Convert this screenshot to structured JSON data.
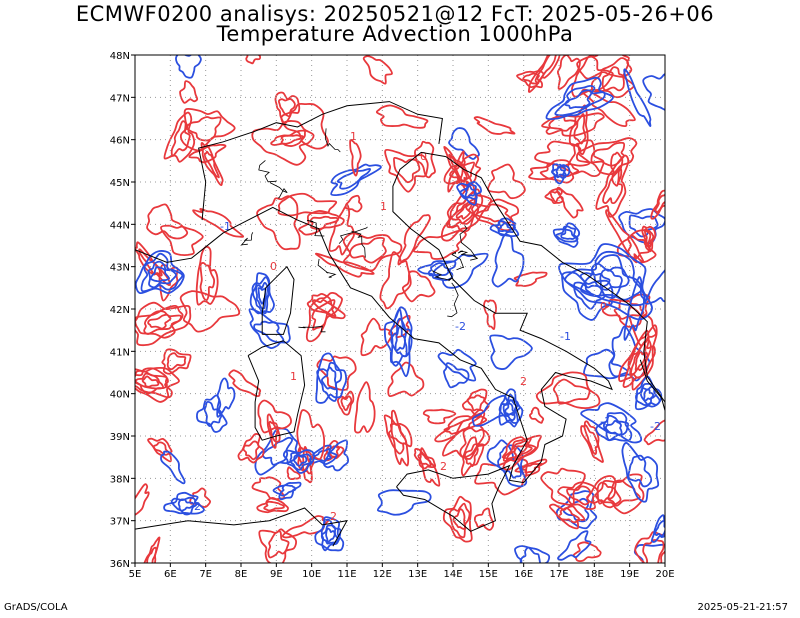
{
  "header": {
    "title_line1": "ECMWF0200 analisys: 20250521@12 FcT: 2025-05-26+06",
    "title_line2": "Temperature Advection 1000hPa"
  },
  "footer": {
    "left": "GrADS/COLA",
    "right": "2025-05-21-21:57"
  },
  "map": {
    "lon_range": [
      5,
      20
    ],
    "lat_range": [
      36,
      48
    ],
    "lon_labels": [
      "5E",
      "6E",
      "7E",
      "8E",
      "9E",
      "10E",
      "11E",
      "12E",
      "13E",
      "14E",
      "15E",
      "16E",
      "17E",
      "18E",
      "19E",
      "20E"
    ],
    "lat_labels": [
      "36N",
      "37N",
      "38N",
      "39N",
      "40N",
      "41N",
      "42N",
      "43N",
      "44N",
      "45N",
      "46N",
      "47N",
      "48N"
    ],
    "grid": "dotted",
    "colors": {
      "warm_advection": "#e8383c",
      "cold_advection": "#2b4fe0",
      "coastline": "#000000",
      "grid": "#9a9a9a"
    },
    "contour_label_samples": [
      "0",
      "1",
      "-1",
      "-2",
      "2"
    ]
  }
}
